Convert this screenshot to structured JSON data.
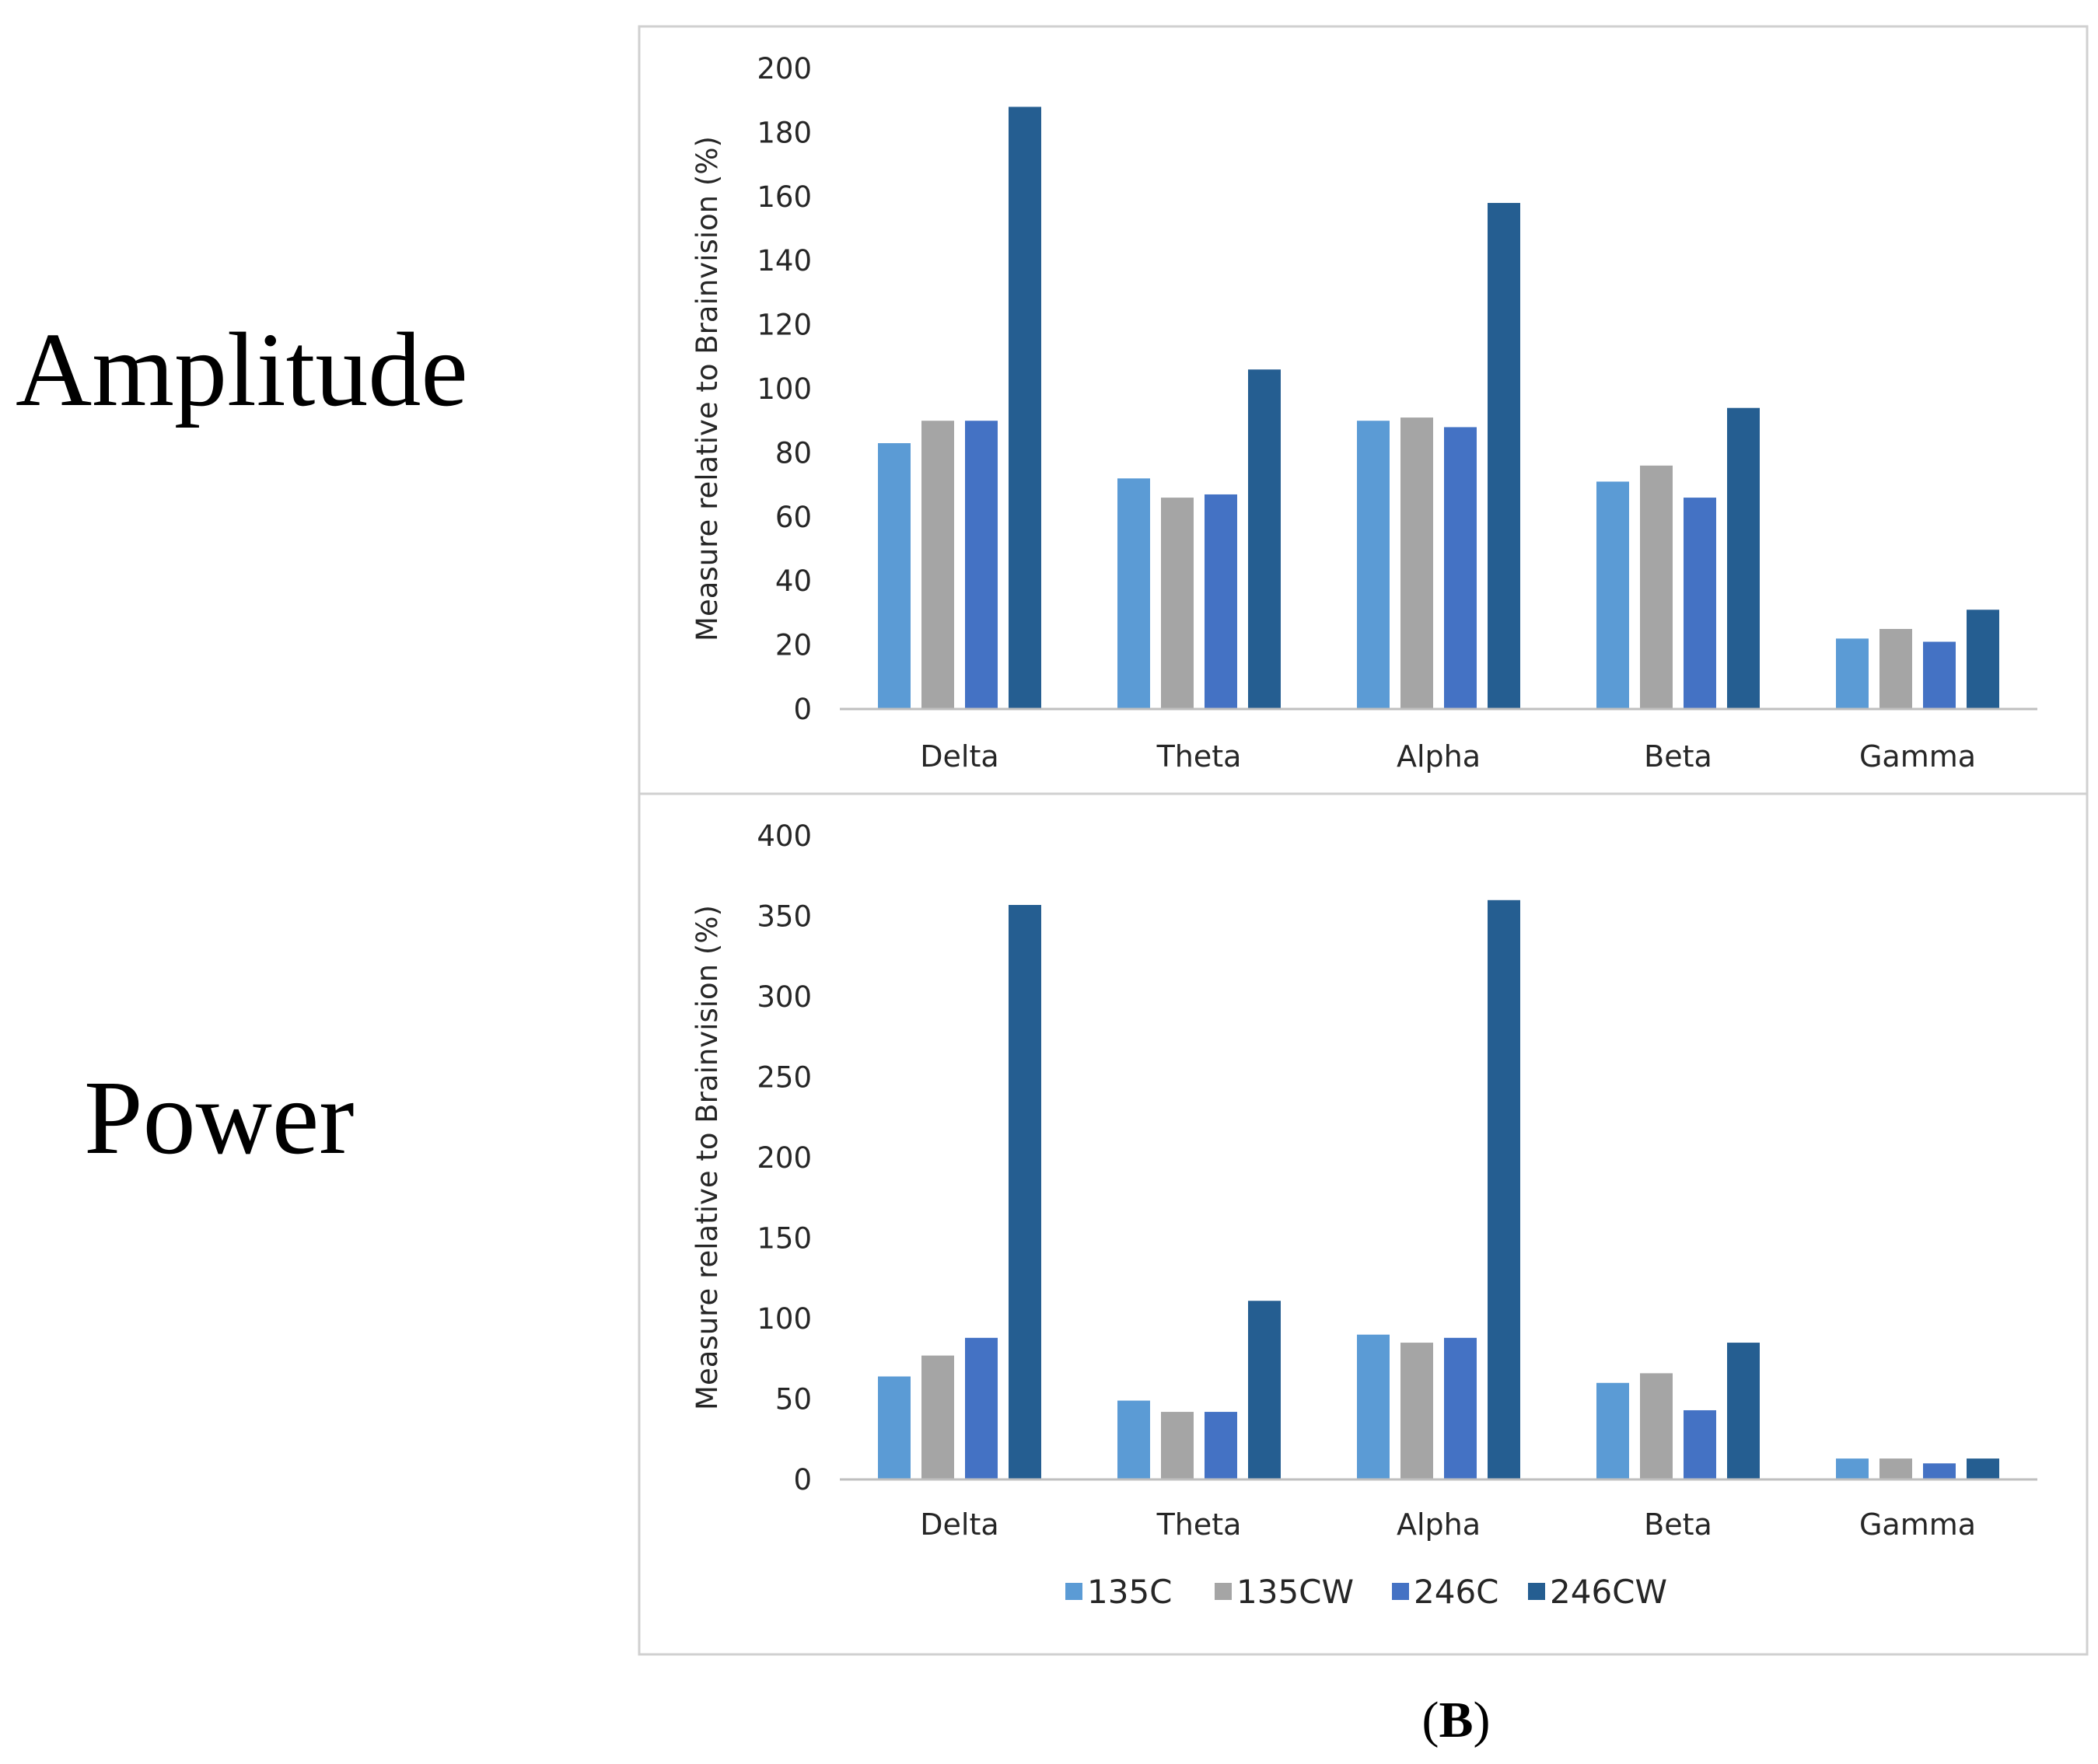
{
  "row_labels": {
    "amplitude": "Amplitude",
    "power": "Power"
  },
  "caption": {
    "open": "(",
    "letter": "B",
    "close": ")"
  },
  "colors": {
    "135C": "#5b9bd5",
    "135CW": "#a5a5a5",
    "246C": "#4472c4",
    "246CW": "#255e91",
    "frame": "#d0d0d0",
    "axis": "#bfbfbf"
  },
  "chart_data": [
    {
      "type": "bar",
      "id": "amplitude",
      "title": "",
      "categories": [
        "Delta",
        "Theta",
        "Alpha",
        "Beta",
        "Gamma"
      ],
      "series": [
        {
          "name": "135C",
          "values": [
            83,
            72,
            90,
            71,
            22
          ]
        },
        {
          "name": "135CW",
          "values": [
            90,
            66,
            91,
            76,
            25
          ]
        },
        {
          "name": "246C",
          "values": [
            90,
            67,
            88,
            66,
            21
          ]
        },
        {
          "name": "246CW",
          "values": [
            188,
            106,
            158,
            94,
            31
          ]
        }
      ],
      "xlabel": "",
      "ylabel": "Measure relative to Brainvision (%)",
      "ylim": [
        0,
        200
      ],
      "yticks": [
        0,
        20,
        40,
        60,
        80,
        100,
        120,
        140,
        160,
        180,
        200
      ],
      "grid": false
    },
    {
      "type": "bar",
      "id": "power",
      "title": "",
      "categories": [
        "Delta",
        "Theta",
        "Alpha",
        "Beta",
        "Gamma"
      ],
      "series": [
        {
          "name": "135C",
          "values": [
            64,
            49,
            90,
            60,
            13
          ]
        },
        {
          "name": "135CW",
          "values": [
            77,
            42,
            85,
            66,
            13
          ]
        },
        {
          "name": "246C",
          "values": [
            88,
            42,
            88,
            43,
            10
          ]
        },
        {
          "name": "246CW",
          "values": [
            357,
            111,
            360,
            85,
            13
          ]
        }
      ],
      "xlabel": "",
      "ylabel": "Measure relative to Brainvision (%)",
      "ylim": [
        0,
        400
      ],
      "yticks": [
        0,
        50,
        100,
        150,
        200,
        250,
        300,
        350,
        400
      ],
      "grid": false,
      "legend": {
        "position": "bottom",
        "entries": [
          "135C",
          "135CW",
          "246C",
          "246CW"
        ]
      }
    }
  ]
}
